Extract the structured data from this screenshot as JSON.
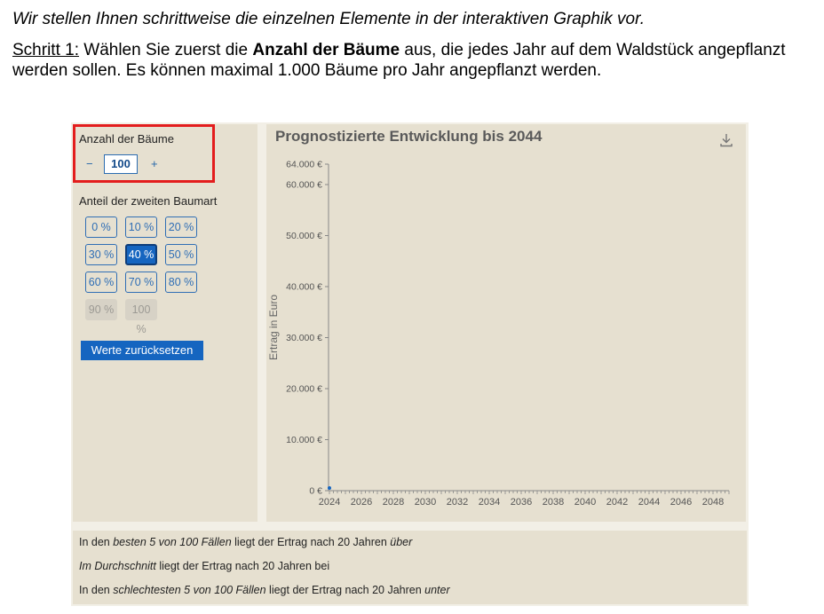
{
  "intro": {
    "line1": "Wir stellen Ihnen schrittweise die einzelnen Elemente in der interaktiven Graphik vor.",
    "step_label": "Schritt 1:",
    "step_text_a": " Wählen Sie zuerst die ",
    "step_bold": "Anzahl der Bäume",
    "step_text_b": " aus, die jedes Jahr auf dem Waldstück angepflanzt werden sollen. Es können maximal 1.000  Bäume pro Jahr angepflanzt werden."
  },
  "sidebar": {
    "trees_label": "Anzahl der Bäume",
    "minus": "−",
    "plus": "+",
    "trees_value": "100",
    "share_label": "Anteil der zweiten Baumart",
    "share_options": [
      "0 %",
      "10 %",
      "20 %",
      "30 %",
      "40 %",
      "50 %",
      "60 %",
      "70 %",
      "80 %",
      "90 %",
      "100 %"
    ],
    "share_selected": "40 %",
    "share_disabled": [
      "90 %",
      "100 %"
    ],
    "reset_label": "Werte zurücksetzen"
  },
  "chart": {
    "title": "Prognostizierte Entwicklung bis 2044",
    "download_icon": "download-icon"
  },
  "chart_data": {
    "type": "line",
    "title": "Prognostizierte Entwicklung bis 2044",
    "xlabel": "",
    "ylabel": "Ertrag in Euro",
    "xlim": [
      2024,
      2049
    ],
    "ylim": [
      0,
      64000
    ],
    "x_ticks": [
      "2024",
      "2026",
      "2028",
      "2030",
      "2032",
      "2034",
      "2036",
      "2038",
      "2040",
      "2042",
      "2044",
      "2046",
      "2048"
    ],
    "y_ticks": [
      "0 €",
      "10.000 €",
      "20.000 €",
      "30.000 €",
      "40.000 €",
      "50.000 €",
      "60.000 €",
      "64.000 €"
    ],
    "y_tick_values": [
      0,
      10000,
      20000,
      30000,
      40000,
      50000,
      60000,
      64000
    ],
    "series": [
      {
        "x": [
          2024
        ],
        "values": [
          0
        ]
      }
    ],
    "grid": false,
    "accent": "#1565c0"
  },
  "footer": {
    "line1_a": "In den ",
    "line1_i": "besten 5 von 100 Fällen",
    "line1_b": " liegt der Ertrag nach 20 Jahren ",
    "line1_i2": "über",
    "line2_i": "Im Durchschnitt",
    "line2_b": " liegt der Ertrag nach 20 Jahren bei",
    "line3_a": "In den ",
    "line3_i": "schlechtesten 5 von 100 Fällen",
    "line3_b": " liegt der Ertrag nach 20 Jahren ",
    "line3_i2": "unter"
  }
}
